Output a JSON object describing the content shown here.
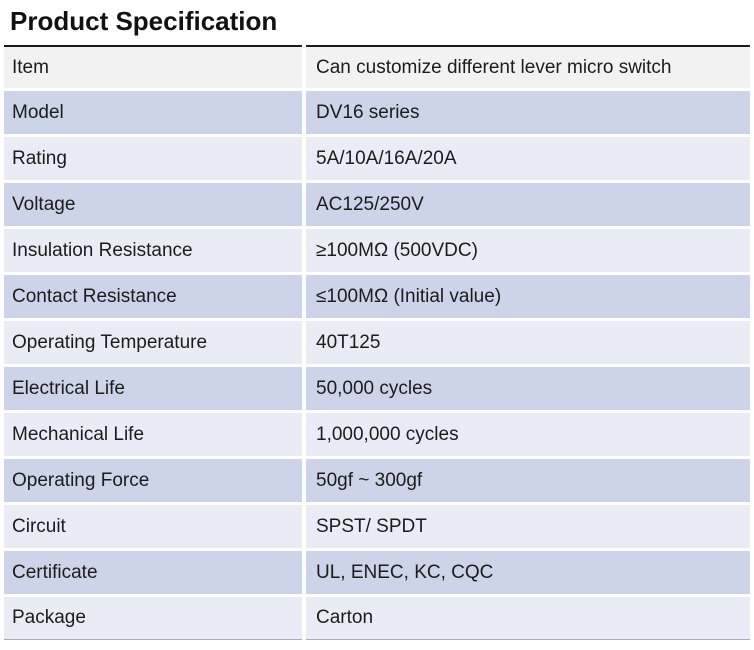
{
  "page": {
    "title": "Product Specification"
  },
  "colors": {
    "row_gray": "#f2f2f2",
    "row_dark": "#cdd3e8",
    "row_light": "#e9ebf5",
    "top_rule": "#1b1b1b",
    "bottom_rule": "#a9abb8",
    "text": "#1c1c1c"
  },
  "table": {
    "columns": [
      "attribute",
      "value"
    ],
    "rows": [
      {
        "label": "Item",
        "value": "Can customize different lever micro switch",
        "tone": "row_gray"
      },
      {
        "label": "Model",
        "value": "DV16 series",
        "tone": "row_dark"
      },
      {
        "label": "Rating",
        "value": "5A/10A/16A/20A",
        "tone": "row_light"
      },
      {
        "label": "Voltage",
        "value": "AC125/250V",
        "tone": "row_dark"
      },
      {
        "label": "Insulation Resistance",
        "value": "≥100MΩ (500VDC)",
        "tone": "row_light"
      },
      {
        "label": "Contact Resistance",
        "value": "≤100MΩ (Initial value)",
        "tone": "row_dark"
      },
      {
        "label": "Operating Temperature",
        "value": "40T125",
        "tone": "row_light"
      },
      {
        "label": "Electrical Life",
        "value": "50,000 cycles",
        "tone": "row_dark"
      },
      {
        "label": "Mechanical Life",
        "value": "1,000,000 cycles",
        "tone": "row_light"
      },
      {
        "label": "Operating Force",
        "value": "50gf ~ 300gf",
        "tone": "row_dark"
      },
      {
        "label": "Circuit",
        "value": "SPST/ SPDT",
        "tone": "row_light"
      },
      {
        "label": "Certificate",
        "value": "UL, ENEC, KC, CQC",
        "tone": "row_dark"
      },
      {
        "label": "Package",
        "value": "Carton",
        "tone": "row_light"
      }
    ]
  }
}
